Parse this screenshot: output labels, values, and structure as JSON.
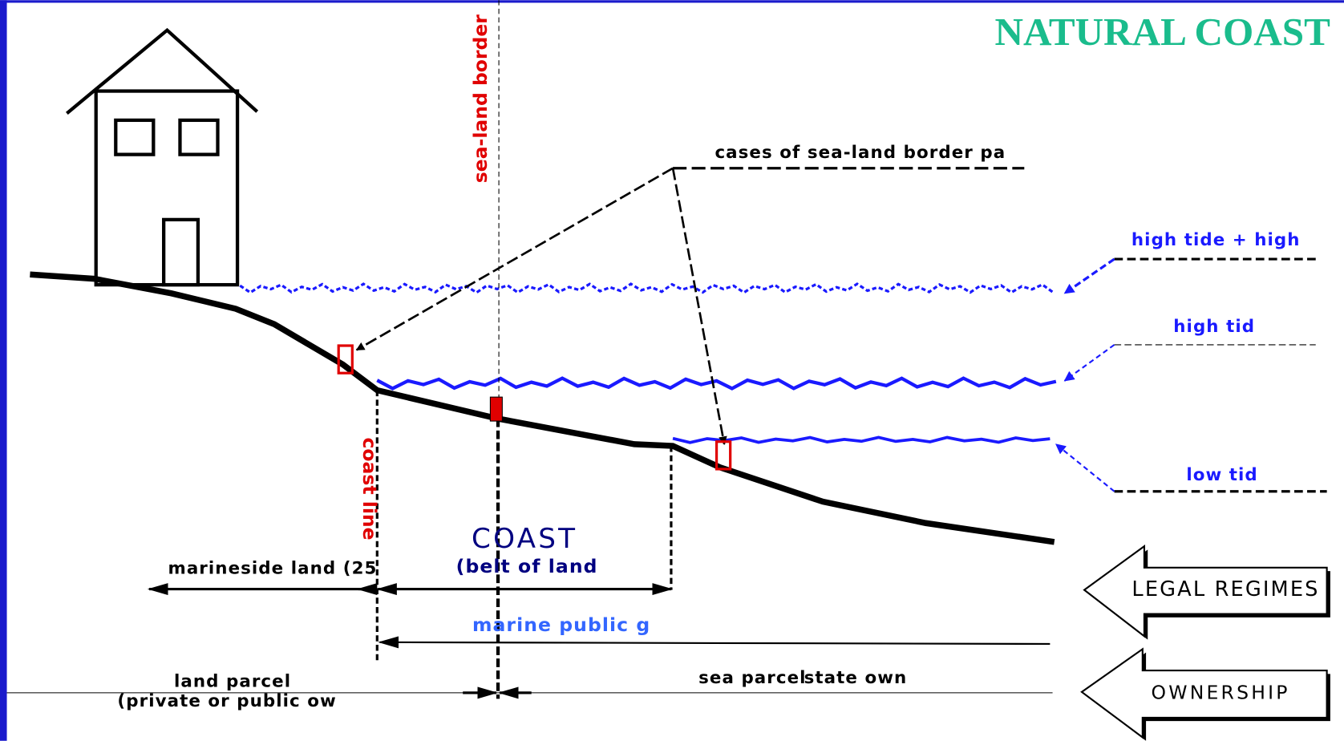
{
  "title": "NATURAL COAST",
  "labels": {
    "sea_land_border": "sea-land border",
    "cases": "cases of sea-land border pa",
    "high_tide_high": "high tide + high",
    "high_tide": "high tid",
    "low_tide": "low tid",
    "coast_line": "coast line",
    "marineside_land": "marineside land (25",
    "coast": "COAST",
    "belt_of_land": "(belt of land",
    "marine_public": "marine public g",
    "land_parcel": "land parcel",
    "private_public": "(private or public ow",
    "sea_parcel": "sea parcel",
    "state_own": "state own",
    "legal_regimes": "LEGAL REGIMES",
    "ownership": "OWNERSHIP"
  }
}
